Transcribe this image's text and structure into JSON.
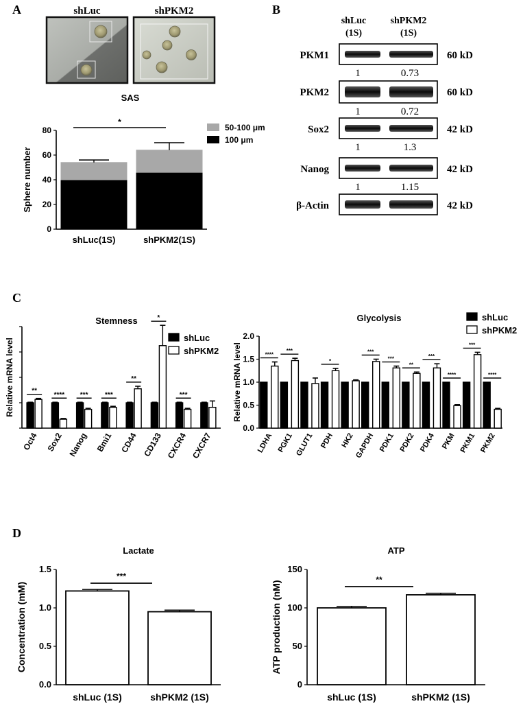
{
  "panel_labels": {
    "a": "A",
    "b": "B",
    "c": "C",
    "d": "D"
  },
  "panel_a": {
    "image_labels": [
      "shLuc",
      "shPKM2"
    ],
    "caption": "SAS"
  },
  "panel_b": {
    "headers": [
      "shLuc\n(1S)",
      "shPKM2\n(1S)"
    ],
    "header_lines": [
      [
        "shLuc",
        "(1S)"
      ],
      [
        "shPKM2",
        "(1S)"
      ]
    ],
    "blots": [
      {
        "protein": "PKM1",
        "size": "60 kD",
        "quant": [
          "1",
          "0.73"
        ]
      },
      {
        "protein": "PKM2",
        "size": "60 kD",
        "quant": [
          "1",
          "0.72"
        ]
      },
      {
        "protein": "Sox2",
        "size": "42 kD",
        "quant": [
          "1",
          "1.3"
        ]
      },
      {
        "protein": "Nanog",
        "size": "42 kD",
        "quant": [
          "1",
          "1.15"
        ]
      },
      {
        "protein": "β-Actin",
        "size": "42 kD",
        "quant": []
      }
    ]
  },
  "colors": {
    "dark": "#000000",
    "gray": "#a8a8a8",
    "white": "#ffffff"
  },
  "chart_data": [
    {
      "id": "sphere",
      "type": "bar",
      "stacked": true,
      "title": "",
      "categories": [
        "shLuc(1S)",
        "shPKM2(1S)"
      ],
      "series": [
        {
          "name": "100 μm",
          "values": [
            40,
            46
          ],
          "error": [
            4,
            4
          ],
          "color": "#000000"
        },
        {
          "name": "50-100 μm",
          "values": [
            14,
            18
          ],
          "error": [
            2,
            6
          ],
          "color": "#a8a8a8"
        }
      ],
      "ylabel": "Sphere number",
      "ylim": [
        0,
        80
      ],
      "yticks": [
        0,
        20,
        40,
        60,
        80
      ],
      "significance": [
        {
          "from": 0,
          "to": 1,
          "label": "*"
        }
      ],
      "legend": "top-right"
    },
    {
      "id": "stemness",
      "type": "bar",
      "title": "Stemness",
      "categories": [
        "Oct4",
        "Sox2",
        "Nanog",
        "Bmi1",
        "CD44",
        "CD133",
        "CXCR4",
        "CXCR7"
      ],
      "series": [
        {
          "name": "shLuc",
          "values": [
            1.0,
            1.0,
            1.0,
            1.0,
            1.0,
            1.0,
            1.0,
            1.0
          ],
          "error": [
            0.02,
            0.02,
            0.02,
            0.02,
            0.02,
            0.02,
            0.02,
            0.02
          ]
        },
        {
          "name": "shPKM2",
          "values": [
            1.13,
            0.35,
            0.74,
            0.82,
            1.55,
            3.25,
            0.74,
            0.82
          ],
          "error": [
            0.04,
            0.03,
            0.04,
            0.04,
            0.1,
            0.8,
            0.04,
            0.25
          ]
        }
      ],
      "ylabel": "Relative mRNA level",
      "ylim": [
        0,
        4
      ],
      "significance": [
        "**",
        "****",
        "***",
        "***",
        "**",
        "*",
        "***",
        ""
      ],
      "legend": "top-right"
    },
    {
      "id": "glycolysis",
      "type": "bar",
      "title": "Glycolysis",
      "categories": [
        "LDHA",
        "PGK1",
        "GLUT1",
        "PDH",
        "HK2",
        "GAPDH",
        "PDK1",
        "PDK2",
        "PDK4",
        "PKM",
        "PKM1",
        "PKM2"
      ],
      "series": [
        {
          "name": "shLuc",
          "values": [
            1,
            1,
            1,
            1,
            1,
            1,
            1,
            1,
            1,
            1,
            1,
            1
          ],
          "error": [
            0,
            0,
            0,
            0,
            0,
            0,
            0,
            0,
            0,
            0,
            0,
            0
          ]
        },
        {
          "name": "shPKM2",
          "values": [
            1.35,
            1.47,
            0.97,
            1.25,
            1.03,
            1.45,
            1.31,
            1.19,
            1.31,
            0.49,
            1.6,
            0.41
          ],
          "error": [
            0.09,
            0.05,
            0.12,
            0.05,
            0.02,
            0.05,
            0.04,
            0.03,
            0.09,
            0.02,
            0.05,
            0.02
          ]
        }
      ],
      "ylabel": "Relative mRNA level",
      "ylim": [
        0,
        2.0
      ],
      "yticks": [
        0,
        0.5,
        1.0,
        1.5,
        2.0
      ],
      "ytick_labels": [
        "0.0",
        "0.5",
        "1.0",
        "1.5",
        "2.0"
      ],
      "significance": [
        "****",
        "***",
        "",
        "*",
        "",
        "***",
        "***",
        "**",
        "***",
        "****",
        "***",
        "****"
      ],
      "legend": "top-right"
    },
    {
      "id": "lactate",
      "type": "bar",
      "title": "Lactate",
      "categories": [
        "shLuc (1S)",
        "shPKM2 (1S)"
      ],
      "values": [
        1.22,
        0.95
      ],
      "error": [
        0.02,
        0.02
      ],
      "ylabel": "Concentration (mM)",
      "ylim": [
        0,
        1.5
      ],
      "yticks": [
        0,
        0.5,
        1.0,
        1.5
      ],
      "ytick_labels": [
        "0.0",
        "0.5",
        "1.0",
        "1.5"
      ],
      "significance": [
        {
          "from": 0,
          "to": 1,
          "label": "***"
        }
      ]
    },
    {
      "id": "atp",
      "type": "bar",
      "title": "ATP",
      "categories": [
        "shLuc (1S)",
        "shPKM2 (1S)"
      ],
      "values": [
        100,
        117
      ],
      "error": [
        2,
        2
      ],
      "ylabel": "ATP production (nM)",
      "ylim": [
        0,
        150
      ],
      "yticks": [
        0,
        50,
        100,
        150
      ],
      "significance": [
        {
          "from": 0,
          "to": 1,
          "label": "**"
        }
      ]
    }
  ]
}
